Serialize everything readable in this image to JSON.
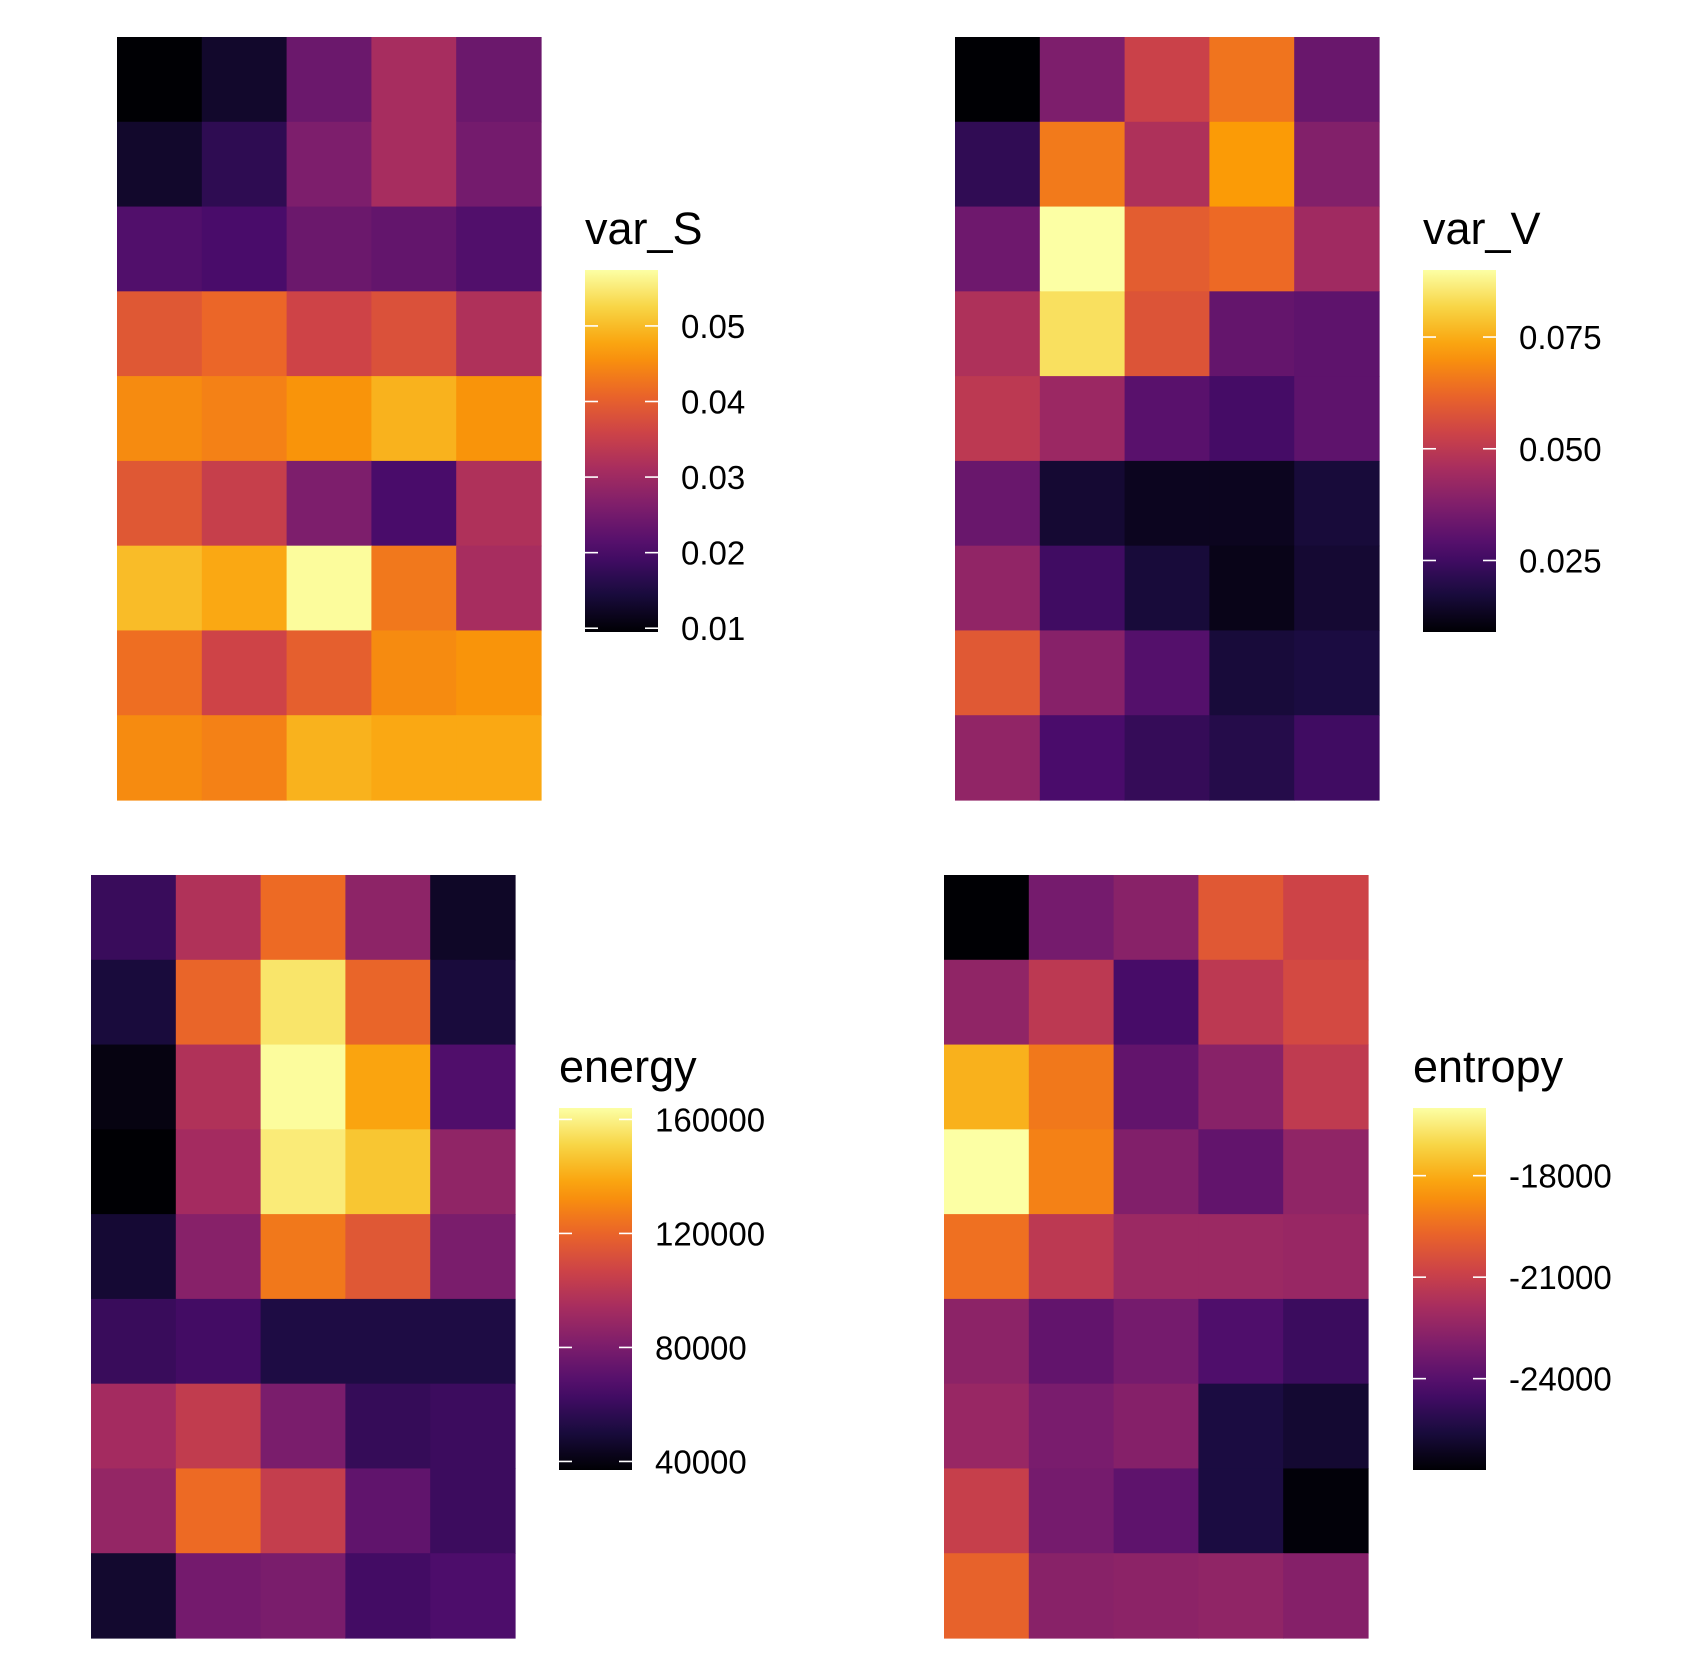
{
  "colormap": {
    "name": "inferno",
    "stops": [
      "#000004",
      "#1b0c41",
      "#4a0c6b",
      "#781c6d",
      "#a52c60",
      "#cf4446",
      "#ed6925",
      "#fb9b06",
      "#f7d13d",
      "#fcffa4"
    ]
  },
  "chart_data": [
    {
      "type": "heatmap",
      "title": "",
      "legend_title": "var_S",
      "legend_placement": "right",
      "grid": false,
      "rows": 9,
      "cols": 5,
      "vmin": 0.0095,
      "vmax": 0.0574,
      "legend_ticks": [
        {
          "value": 0.01,
          "label": "0.01"
        },
        {
          "value": 0.02,
          "label": "0.02"
        },
        {
          "value": 0.03,
          "label": "0.03"
        },
        {
          "value": 0.04,
          "label": "0.04"
        },
        {
          "value": 0.05,
          "label": "0.05"
        }
      ],
      "values": [
        [
          0.0095,
          0.013,
          0.024,
          0.031,
          0.024
        ],
        [
          0.013,
          0.017,
          0.026,
          0.031,
          0.025
        ],
        [
          0.021,
          0.02,
          0.024,
          0.023,
          0.021
        ],
        [
          0.039,
          0.041,
          0.036,
          0.038,
          0.032
        ],
        [
          0.045,
          0.044,
          0.046,
          0.049,
          0.046
        ],
        [
          0.039,
          0.035,
          0.026,
          0.02,
          0.032
        ],
        [
          0.05,
          0.048,
          0.057,
          0.043,
          0.031
        ],
        [
          0.042,
          0.036,
          0.04,
          0.045,
          0.046
        ],
        [
          0.045,
          0.044,
          0.049,
          0.048,
          0.048
        ]
      ]
    },
    {
      "type": "heatmap",
      "title": "",
      "legend_title": "var_V",
      "legend_placement": "right",
      "grid": false,
      "rows": 9,
      "cols": 5,
      "vmin": 0.009,
      "vmax": 0.09,
      "legend_ticks": [
        {
          "value": 0.025,
          "label": "0.025"
        },
        {
          "value": 0.05,
          "label": "0.050"
        },
        {
          "value": 0.075,
          "label": "0.075"
        }
      ],
      "values": [
        [
          0.009,
          0.037,
          0.053,
          0.065,
          0.033
        ],
        [
          0.022,
          0.066,
          0.047,
          0.072,
          0.038
        ],
        [
          0.034,
          0.09,
          0.06,
          0.063,
          0.044
        ],
        [
          0.047,
          0.084,
          0.058,
          0.032,
          0.031
        ],
        [
          0.05,
          0.043,
          0.03,
          0.026,
          0.031
        ],
        [
          0.033,
          0.016,
          0.013,
          0.013,
          0.017
        ],
        [
          0.041,
          0.025,
          0.017,
          0.012,
          0.016
        ],
        [
          0.059,
          0.039,
          0.029,
          0.017,
          0.018
        ],
        [
          0.041,
          0.027,
          0.023,
          0.02,
          0.025
        ]
      ]
    },
    {
      "type": "heatmap",
      "title": "",
      "legend_title": "energy",
      "legend_placement": "right",
      "grid": false,
      "rows": 9,
      "cols": 5,
      "vmin": 37000,
      "vmax": 164000,
      "legend_ticks": [
        {
          "value": 40000,
          "label": "40000"
        },
        {
          "value": 80000,
          "label": "80000"
        },
        {
          "value": 120000,
          "label": "120000"
        },
        {
          "value": 160000,
          "label": "160000"
        }
      ],
      "values": [
        [
          60000,
          97000,
          122000,
          86000,
          45000
        ],
        [
          50000,
          120000,
          156000,
          120000,
          50000
        ],
        [
          40000,
          97000,
          163000,
          138000,
          67000
        ],
        [
          37000,
          93000,
          158000,
          147000,
          87000
        ],
        [
          48000,
          84000,
          126000,
          115000,
          80000
        ],
        [
          60000,
          63000,
          52000,
          52000,
          52000
        ],
        [
          93000,
          103000,
          80000,
          59000,
          61000
        ],
        [
          88000,
          122000,
          104000,
          72000,
          61000
        ],
        [
          47000,
          78000,
          80000,
          63000,
          66000
        ]
      ]
    },
    {
      "type": "heatmap",
      "title": "",
      "legend_title": "entropy",
      "legend_placement": "right",
      "grid": false,
      "rows": 9,
      "cols": 5,
      "vmin": -26700,
      "vmax": -16000,
      "legend_ticks": [
        {
          "value": -24000,
          "label": "-24000"
        },
        {
          "value": -21000,
          "label": "-21000"
        },
        {
          "value": -18000,
          "label": "-18000"
        }
      ],
      "values": [
        [
          -26700,
          -23200,
          -22700,
          -20100,
          -20800
        ],
        [
          -22500,
          -21300,
          -24400,
          -21300,
          -20600
        ],
        [
          -17900,
          -19200,
          -23700,
          -22700,
          -21200
        ],
        [
          -16000,
          -19000,
          -22900,
          -23700,
          -22500
        ],
        [
          -19400,
          -21300,
          -22200,
          -22200,
          -22300
        ],
        [
          -22600,
          -23700,
          -23200,
          -24200,
          -24700
        ],
        [
          -22300,
          -23100,
          -22800,
          -25500,
          -25800
        ],
        [
          -21000,
          -23200,
          -23800,
          -25500,
          -26600
        ],
        [
          -19800,
          -22700,
          -22600,
          -22500,
          -22800
        ]
      ]
    }
  ]
}
